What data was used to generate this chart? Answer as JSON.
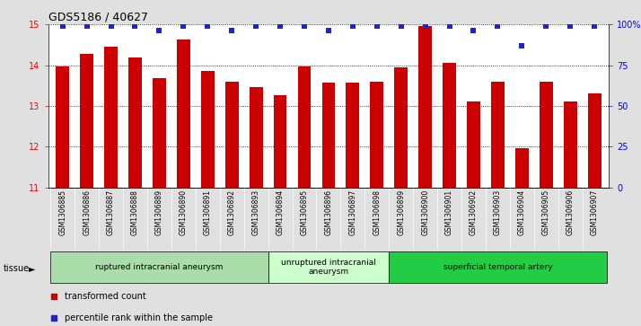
{
  "title": "GDS5186 / 40627",
  "samples": [
    "GSM1306885",
    "GSM1306886",
    "GSM1306887",
    "GSM1306888",
    "GSM1306889",
    "GSM1306890",
    "GSM1306891",
    "GSM1306892",
    "GSM1306893",
    "GSM1306894",
    "GSM1306895",
    "GSM1306896",
    "GSM1306897",
    "GSM1306898",
    "GSM1306899",
    "GSM1306900",
    "GSM1306901",
    "GSM1306902",
    "GSM1306903",
    "GSM1306904",
    "GSM1306905",
    "GSM1306906",
    "GSM1306907"
  ],
  "bar_values": [
    13.97,
    14.27,
    14.45,
    14.18,
    13.68,
    14.63,
    13.85,
    13.6,
    13.47,
    13.27,
    13.97,
    13.58,
    13.58,
    13.6,
    13.95,
    14.97,
    14.05,
    13.12,
    13.6,
    11.97,
    13.6,
    13.12,
    13.3
  ],
  "percentile_values": [
    99,
    99,
    99,
    99,
    96,
    99,
    99,
    96,
    99,
    99,
    99,
    96,
    99,
    99,
    99,
    99,
    99,
    96,
    99,
    87,
    99,
    99,
    99
  ],
  "bar_color": "#cc0000",
  "dot_color": "#2222cc",
  "ylim_left": [
    11,
    15
  ],
  "ylim_right": [
    0,
    100
  ],
  "yticks_left": [
    11,
    12,
    13,
    14,
    15
  ],
  "yticks_right": [
    0,
    25,
    50,
    75,
    100
  ],
  "ytick_labels_right": [
    "0",
    "25",
    "50",
    "75",
    "100%"
  ],
  "groups": [
    {
      "label": "ruptured intracranial aneurysm",
      "start": 0,
      "end": 9,
      "color": "#aaddaa"
    },
    {
      "label": "unruptured intracranial\naneurysm",
      "start": 9,
      "end": 14,
      "color": "#ccffcc"
    },
    {
      "label": "superficial temporal artery",
      "start": 14,
      "end": 23,
      "color": "#22cc44"
    }
  ],
  "tissue_label": "tissue",
  "legend_bar_label": "transformed count",
  "legend_dot_label": "percentile rank within the sample",
  "background_color": "#e0e0e0",
  "xtick_bg_color": "#cccccc",
  "plot_bg_color": "#ffffff",
  "title_fontsize": 9,
  "tick_fontsize": 7,
  "sample_fontsize": 5.5
}
